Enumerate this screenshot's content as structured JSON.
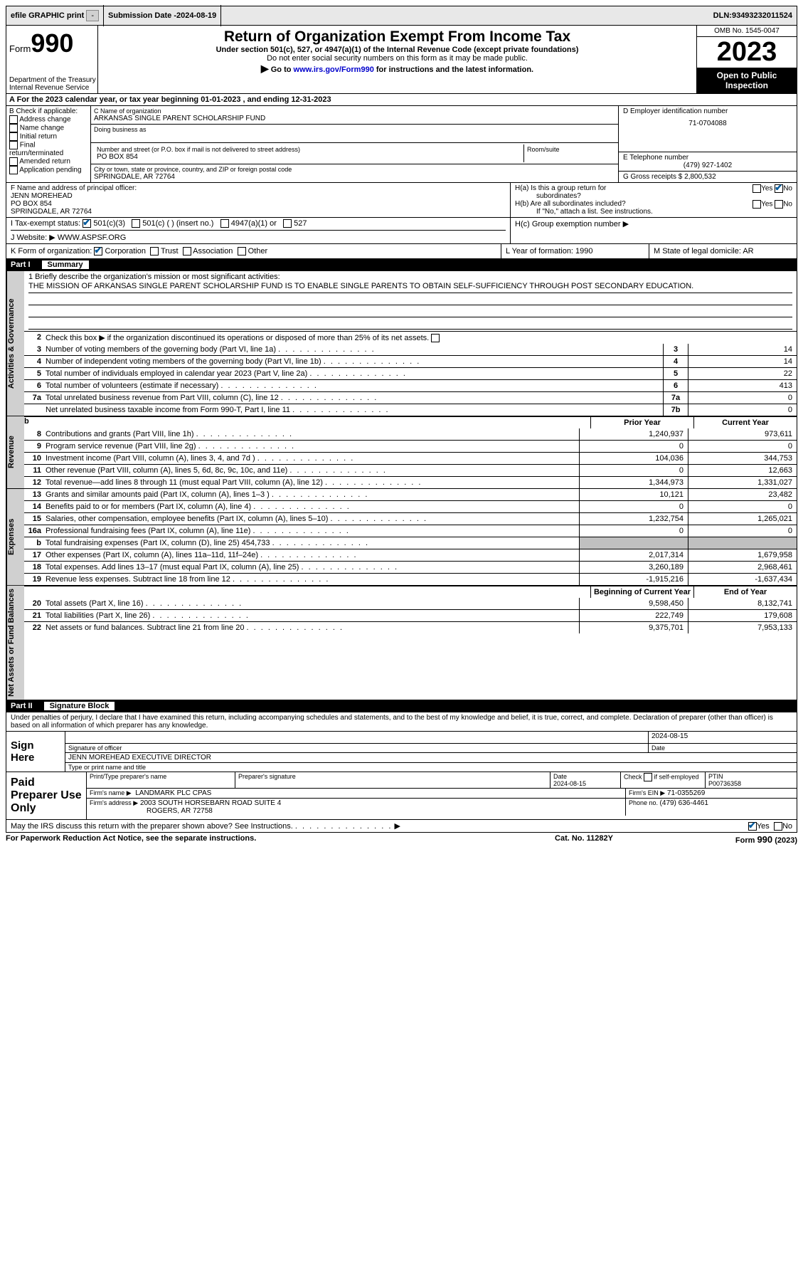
{
  "topbar": {
    "efile": "efile GRAPHIC print",
    "submission_label": "Submission Date - ",
    "submission_date": "2024-08-19",
    "dln_label": "DLN: ",
    "dln": "93493232011524"
  },
  "header": {
    "form_word": "Form",
    "form_num": "990",
    "title": "Return of Organization Exempt From Income Tax",
    "subtitle": "Under section 501(c), 527, or 4947(a)(1) of the Internal Revenue Code (except private foundations)",
    "note1": "Do not enter social security numbers on this form as it may be made public.",
    "note2_pre": "Go to ",
    "note2_link": "www.irs.gov/Form990",
    "note2_post": " for instructions and the latest information.",
    "dept": "Department of the Treasury",
    "irs": "Internal Revenue Service",
    "omb": "OMB No. 1545-0047",
    "year": "2023",
    "open": "Open to Public Inspection"
  },
  "sectionA": "A For the 2023 calendar year, or tax year beginning 01-01-2023    , and ending 12-31-2023",
  "boxB": {
    "title": "B Check if applicable:",
    "opts": [
      "Address change",
      "Name change",
      "Initial return",
      "Final return/terminated",
      "Amended return",
      "Application pending"
    ]
  },
  "boxC": {
    "label": "C Name of organization",
    "name": "ARKANSAS SINGLE PARENT SCHOLARSHIP FUND",
    "dba_label": "Doing business as",
    "street_label": "Number and street (or P.O. box if mail is not delivered to street address)",
    "street": "PO BOX 854",
    "room_label": "Room/suite",
    "city_label": "City or town, state or province, country, and ZIP or foreign postal code",
    "city": "SPRINGDALE, AR  72764"
  },
  "boxD": {
    "label": "D Employer identification number",
    "value": "71-0704088"
  },
  "boxE": {
    "label": "E Telephone number",
    "value": "(479) 927-1402"
  },
  "boxG": {
    "label": "G Gross receipts $ ",
    "value": "2,800,532"
  },
  "boxF": {
    "label": "F Name and address of principal officer:",
    "name": "JENN MOREHEAD",
    "street": "PO BOX 854",
    "city": "SPRINGDALE, AR  72764"
  },
  "boxH": {
    "ha": "H(a)  Is this a group return for",
    "ha2": "subordinates?",
    "hb": "H(b)  Are all subordinates included?",
    "hb_note": "If \"No,\" attach a list. See instructions.",
    "hc": "H(c)  Group exemption number ▶",
    "yes": "Yes",
    "no": "No"
  },
  "rowI": {
    "label": "I    Tax-exempt status:",
    "opt1": "501(c)(3)",
    "opt2": "501(c) (   ) (insert no.)",
    "opt3": "4947(a)(1) or",
    "opt4": "527"
  },
  "rowJ": {
    "label": "J   Website:  ▶",
    "value": "WWW.ASPSF.ORG"
  },
  "rowK": {
    "label": "K Form of organization:",
    "opts": [
      "Corporation",
      "Trust",
      "Association",
      "Other"
    ],
    "l_label": "L Year of formation: ",
    "l_val": "1990",
    "m_label": "M State of legal domicile: ",
    "m_val": "AR"
  },
  "part1": {
    "num": "Part I",
    "title": "Summary"
  },
  "vtabs": {
    "ag": "Activities & Governance",
    "rev": "Revenue",
    "exp": "Expenses",
    "na": "Net Assets or Fund Balances"
  },
  "mission": {
    "q": "1    Briefly describe the organization's mission or most significant activities:",
    "text": "THE MISSION OF ARKANSAS SINGLE PARENT SCHOLARSHIP FUND IS TO ENABLE SINGLE PARENTS TO OBTAIN SELF-SUFFICIENCY THROUGH POST SECONDARY EDUCATION."
  },
  "line2": "Check this box ▶        if the organization discontinued its operations or disposed of more than 25% of its net assets.",
  "lines_ag": [
    {
      "n": "3",
      "d": "Number of voting members of the governing body (Part VI, line 1a)",
      "box": "3",
      "v": "14"
    },
    {
      "n": "4",
      "d": "Number of independent voting members of the governing body (Part VI, line 1b)",
      "box": "4",
      "v": "14"
    },
    {
      "n": "5",
      "d": "Total number of individuals employed in calendar year 2023 (Part V, line 2a)",
      "box": "5",
      "v": "22"
    },
    {
      "n": "6",
      "d": "Total number of volunteers (estimate if necessary)",
      "box": "6",
      "v": "413"
    },
    {
      "n": "7a",
      "d": "Total unrelated business revenue from Part VIII, column (C), line 12",
      "box": "7a",
      "v": "0"
    },
    {
      "n": "",
      "d": "Net unrelated business taxable income from Form 990-T, Part I, line 11",
      "box": "7b",
      "v": "0"
    }
  ],
  "col_hdr": {
    "b": "b",
    "py": "Prior Year",
    "cy": "Current Year"
  },
  "lines_rev": [
    {
      "n": "8",
      "d": "Contributions and grants (Part VIII, line 1h)",
      "py": "1,240,937",
      "cy": "973,611"
    },
    {
      "n": "9",
      "d": "Program service revenue (Part VIII, line 2g)",
      "py": "0",
      "cy": "0"
    },
    {
      "n": "10",
      "d": "Investment income (Part VIII, column (A), lines 3, 4, and 7d )",
      "py": "104,036",
      "cy": "344,753"
    },
    {
      "n": "11",
      "d": "Other revenue (Part VIII, column (A), lines 5, 6d, 8c, 9c, 10c, and 11e)",
      "py": "0",
      "cy": "12,663"
    },
    {
      "n": "12",
      "d": "Total revenue—add lines 8 through 11 (must equal Part VIII, column (A), line 12)",
      "py": "1,344,973",
      "cy": "1,331,027"
    }
  ],
  "lines_exp": [
    {
      "n": "13",
      "d": "Grants and similar amounts paid (Part IX, column (A), lines 1–3 )",
      "py": "10,121",
      "cy": "23,482"
    },
    {
      "n": "14",
      "d": "Benefits paid to or for members (Part IX, column (A), line 4)",
      "py": "0",
      "cy": "0"
    },
    {
      "n": "15",
      "d": "Salaries, other compensation, employee benefits (Part IX, column (A), lines 5–10)",
      "py": "1,232,754",
      "cy": "1,265,021"
    },
    {
      "n": "16a",
      "d": "Professional fundraising fees (Part IX, column (A), line 11e)",
      "py": "0",
      "cy": "0"
    },
    {
      "n": "b",
      "d": "Total fundraising expenses (Part IX, column (D), line 25) 454,733",
      "py": "",
      "cy": "",
      "shade": true
    },
    {
      "n": "17",
      "d": "Other expenses (Part IX, column (A), lines 11a–11d, 11f–24e)",
      "py": "2,017,314",
      "cy": "1,679,958"
    },
    {
      "n": "18",
      "d": "Total expenses. Add lines 13–17 (must equal Part IX, column (A), line 25)",
      "py": "3,260,189",
      "cy": "2,968,461"
    },
    {
      "n": "19",
      "d": "Revenue less expenses. Subtract line 18 from line 12",
      "py": "-1,915,216",
      "cy": "-1,637,434"
    }
  ],
  "col_hdr2": {
    "py": "Beginning of Current Year",
    "cy": "End of Year"
  },
  "lines_na": [
    {
      "n": "20",
      "d": "Total assets (Part X, line 16)",
      "py": "9,598,450",
      "cy": "8,132,741"
    },
    {
      "n": "21",
      "d": "Total liabilities (Part X, line 26)",
      "py": "222,749",
      "cy": "179,608"
    },
    {
      "n": "22",
      "d": "Net assets or fund balances. Subtract line 21 from line 20",
      "py": "9,375,701",
      "cy": "7,953,133"
    }
  ],
  "part2": {
    "num": "Part II",
    "title": "Signature Block"
  },
  "sig_intro": "Under penalties of perjury, I declare that I have examined this return, including accompanying schedules and statements, and to the best of my knowledge and belief, it is true, correct, and complete. Declaration of preparer (other than officer) is based on all information of which preparer has any knowledge.",
  "sign": {
    "here": "Sign Here",
    "sig_label": "Signature of officer",
    "name": "JENN MOREHEAD EXECUTIVE DIRECTOR",
    "name_label": "Type or print name and title",
    "date_label": "Date",
    "date": "2024-08-15"
  },
  "paid": {
    "title": "Paid Preparer Use Only",
    "col1": "Print/Type preparer's name",
    "col2": "Preparer's signature",
    "col3_label": "Date",
    "col3": "2024-08-15",
    "col4_label": "Check          if self-employed",
    "col5_label": "PTIN",
    "col5": "P00736358",
    "firm_name_label": "Firm's name    ▶",
    "firm_name": "LANDMARK PLC CPAS",
    "firm_ein_label": "Firm's EIN ▶",
    "firm_ein": "71-0355269",
    "firm_addr_label": "Firm's address ▶",
    "firm_addr1": "2003 SOUTH HORSEBARN ROAD SUITE 4",
    "firm_addr2": "ROGERS, AR  72758",
    "phone_label": "Phone no. ",
    "phone": "(479) 636-4461"
  },
  "discuss": {
    "q": "May the IRS discuss this return with the preparer shown above? See Instructions.",
    "yes": "Yes",
    "no": "No"
  },
  "footer": {
    "pra": "For Paperwork Reduction Act Notice, see the separate instructions.",
    "cat": "Cat. No. 11282Y",
    "form": "Form 990 (2023)"
  }
}
